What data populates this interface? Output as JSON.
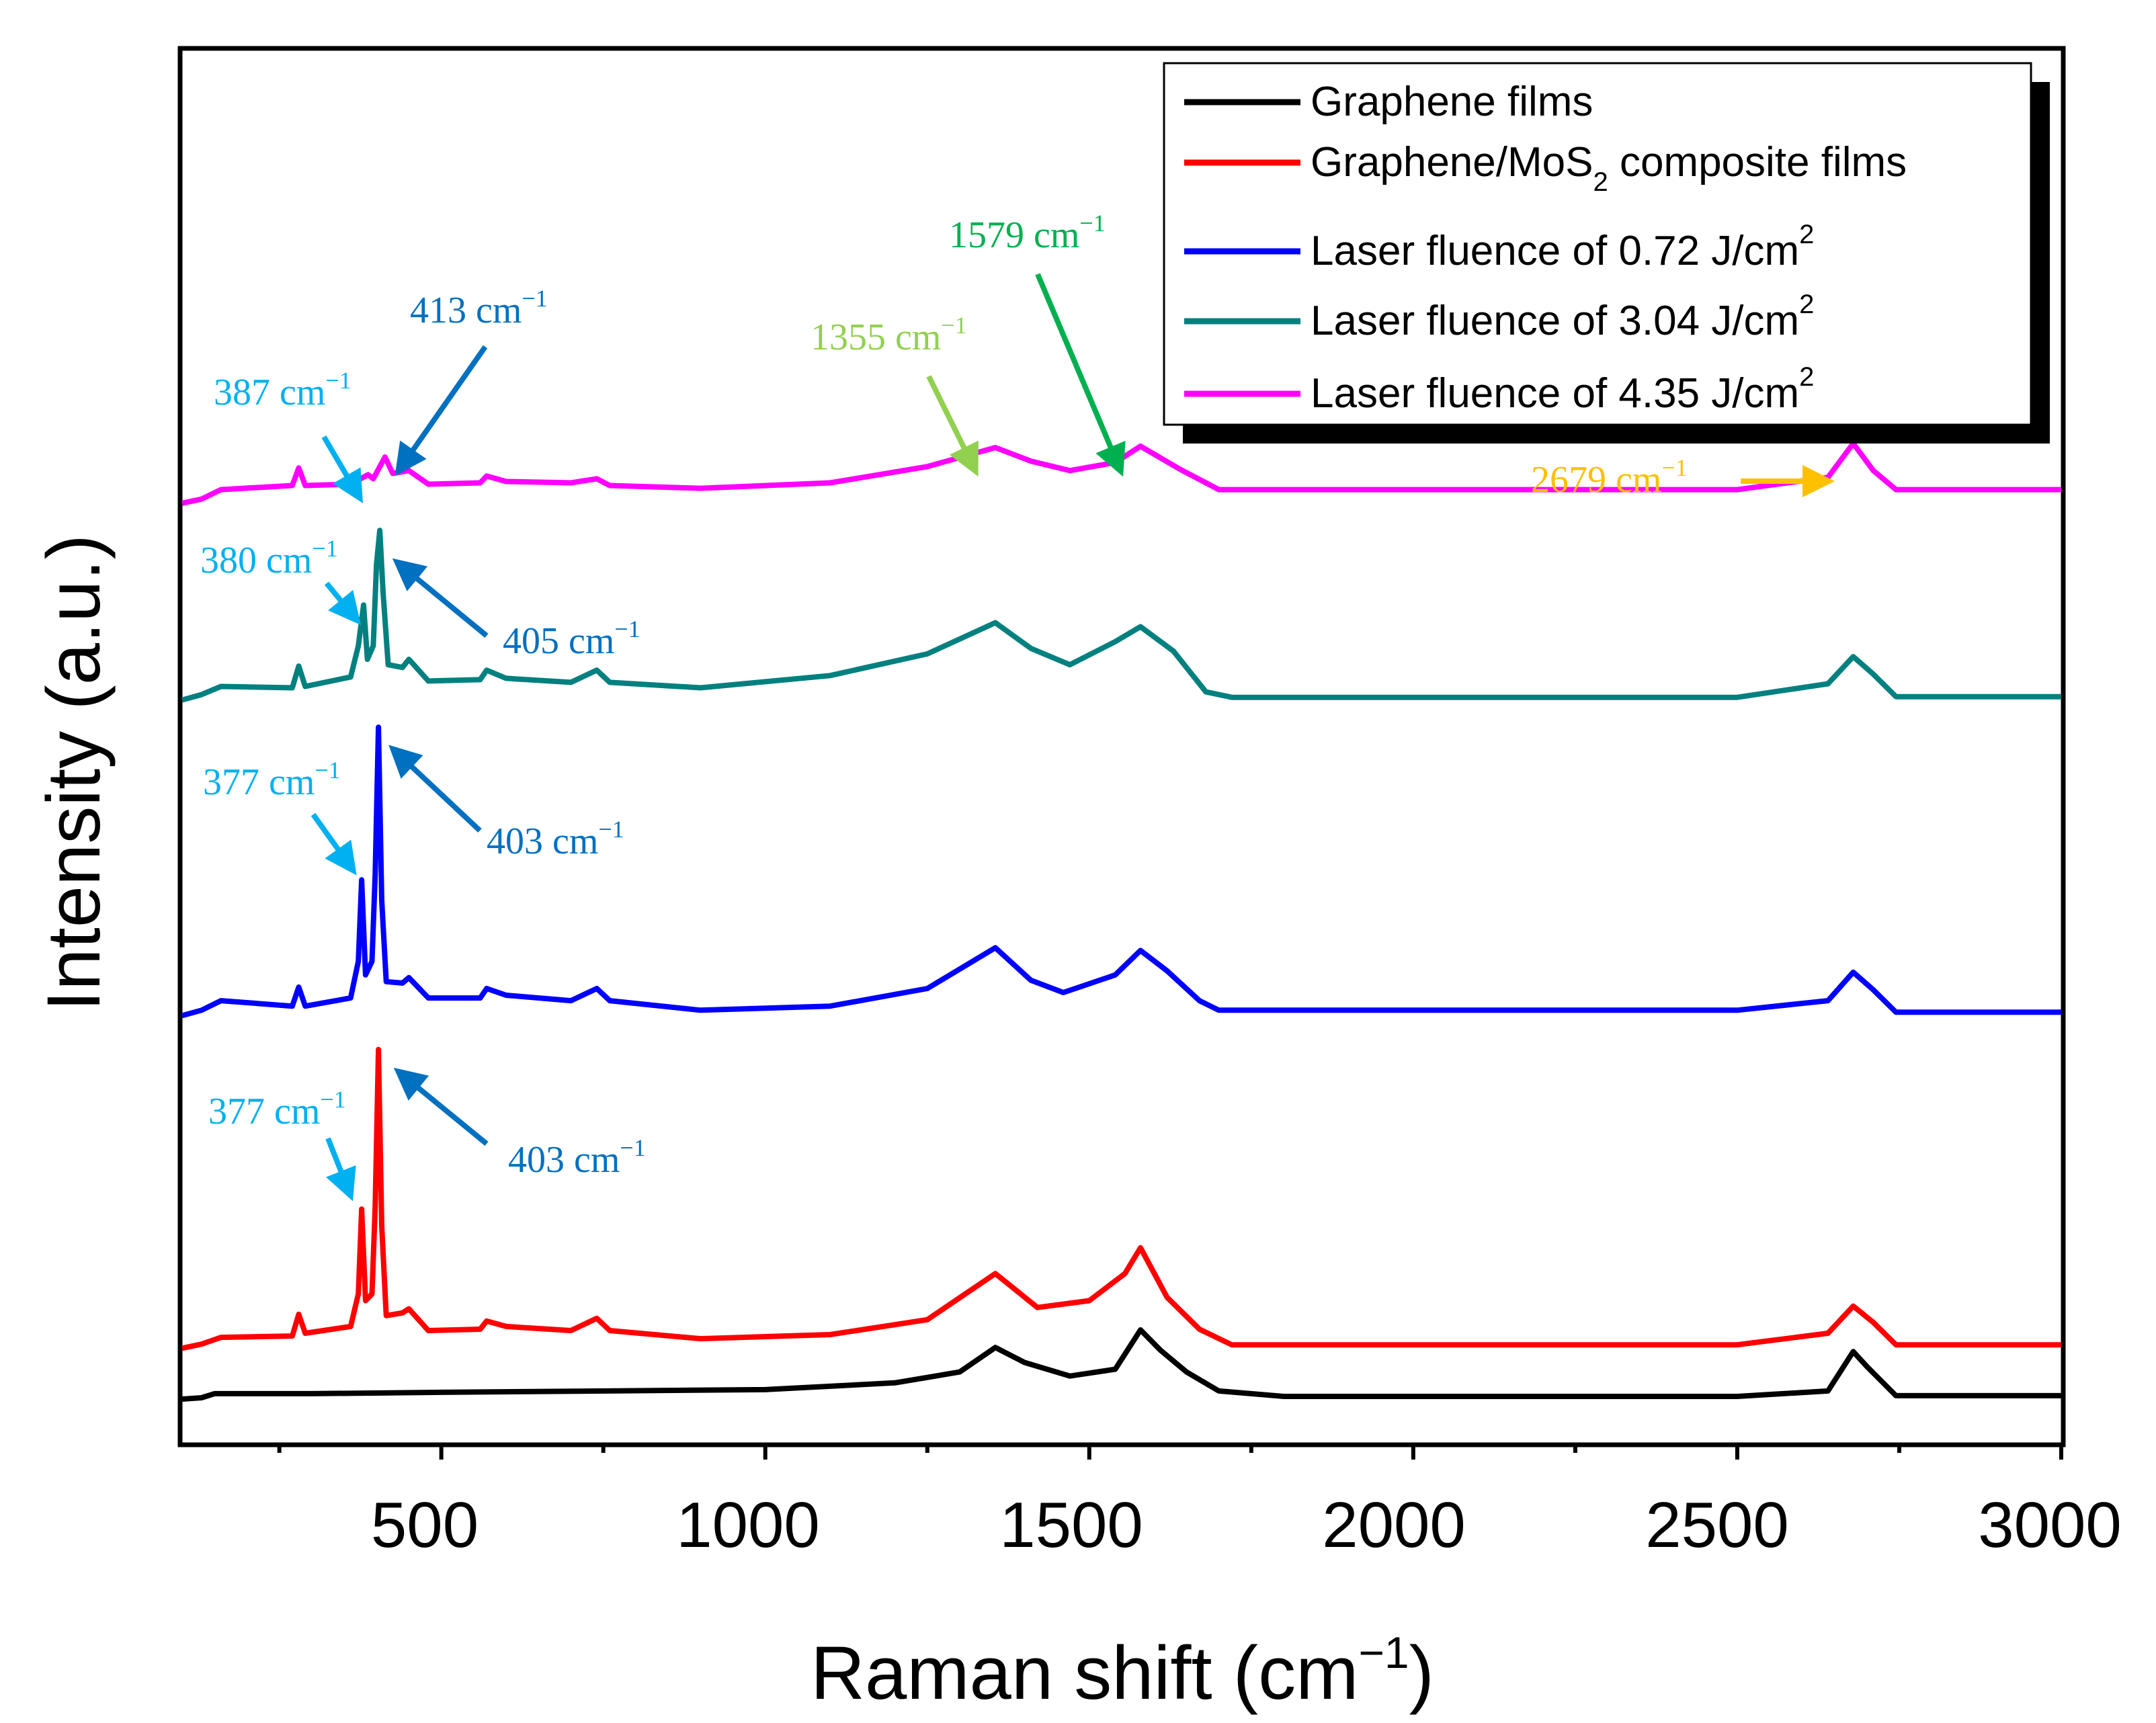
{
  "chart_data": {
    "type": "line",
    "title": "",
    "xlabel": "Raman shift (cm",
    "xlabel_sup": "−1",
    "xlabel_close": ")",
    "ylabel": "Intensity (a.u.)",
    "xlim": [
      100,
      3000
    ],
    "xticks": [
      500,
      1000,
      1500,
      2000,
      2500,
      3000
    ],
    "xtick_labels": [
      "500",
      "1000",
      "1500",
      "2000",
      "2500",
      "3000"
    ],
    "yticks_shown": false,
    "legend_position": "top-right",
    "series": [
      {
        "key": "graphene",
        "name": "Graphene films",
        "color": "#000000",
        "offset": 0,
        "points": [
          [
            100,
            0
          ],
          [
            130,
            2
          ],
          [
            150,
            8
          ],
          [
            300,
            8
          ],
          [
            500,
            10
          ],
          [
            1000,
            14
          ],
          [
            1200,
            24
          ],
          [
            1300,
            40
          ],
          [
            1355,
            76
          ],
          [
            1400,
            54
          ],
          [
            1470,
            34
          ],
          [
            1540,
            44
          ],
          [
            1579,
            102
          ],
          [
            1610,
            72
          ],
          [
            1650,
            40
          ],
          [
            1700,
            12
          ],
          [
            1800,
            4
          ],
          [
            2500,
            4
          ],
          [
            2640,
            12
          ],
          [
            2679,
            70
          ],
          [
            2700,
            48
          ],
          [
            2745,
            5
          ],
          [
            3000,
            5
          ]
        ]
      },
      {
        "key": "composite",
        "name": "Graphene/MoS",
        "name_sub": "2",
        "name_rest": " composite films",
        "color": "#ff0000",
        "offset": 75,
        "points": [
          [
            100,
            0
          ],
          [
            130,
            6
          ],
          [
            160,
            16
          ],
          [
            270,
            18
          ],
          [
            280,
            50
          ],
          [
            290,
            22
          ],
          [
            360,
            32
          ],
          [
            372,
            80
          ],
          [
            377,
            205
          ],
          [
            383,
            70
          ],
          [
            393,
            80
          ],
          [
            398,
            210
          ],
          [
            403,
            440
          ],
          [
            408,
            180
          ],
          [
            415,
            48
          ],
          [
            440,
            52
          ],
          [
            450,
            58
          ],
          [
            480,
            26
          ],
          [
            560,
            28
          ],
          [
            570,
            40
          ],
          [
            600,
            32
          ],
          [
            700,
            26
          ],
          [
            740,
            44
          ],
          [
            760,
            26
          ],
          [
            900,
            14
          ],
          [
            1100,
            20
          ],
          [
            1250,
            42
          ],
          [
            1355,
            110
          ],
          [
            1420,
            60
          ],
          [
            1500,
            70
          ],
          [
            1555,
            110
          ],
          [
            1579,
            148
          ],
          [
            1620,
            75
          ],
          [
            1670,
            28
          ],
          [
            1720,
            5
          ],
          [
            2500,
            5
          ],
          [
            2640,
            22
          ],
          [
            2679,
            62
          ],
          [
            2710,
            38
          ],
          [
            2745,
            5
          ],
          [
            3000,
            5
          ]
        ]
      },
      {
        "key": "f072",
        "name": "Laser fluence of 0.72 J/cm",
        "name_sup": "2",
        "color": "#0000ff",
        "offset": 565,
        "points": [
          [
            100,
            0
          ],
          [
            130,
            8
          ],
          [
            160,
            22
          ],
          [
            270,
            14
          ],
          [
            280,
            42
          ],
          [
            290,
            14
          ],
          [
            360,
            26
          ],
          [
            372,
            80
          ],
          [
            377,
            200
          ],
          [
            383,
            60
          ],
          [
            393,
            80
          ],
          [
            398,
            210
          ],
          [
            403,
            425
          ],
          [
            408,
            170
          ],
          [
            415,
            50
          ],
          [
            440,
            48
          ],
          [
            450,
            56
          ],
          [
            480,
            26
          ],
          [
            560,
            26
          ],
          [
            570,
            40
          ],
          [
            600,
            30
          ],
          [
            700,
            22
          ],
          [
            740,
            40
          ],
          [
            760,
            22
          ],
          [
            900,
            8
          ],
          [
            1100,
            14
          ],
          [
            1250,
            40
          ],
          [
            1355,
            100
          ],
          [
            1410,
            52
          ],
          [
            1460,
            34
          ],
          [
            1540,
            60
          ],
          [
            1579,
            96
          ],
          [
            1620,
            66
          ],
          [
            1670,
            22
          ],
          [
            1700,
            8
          ],
          [
            2500,
            8
          ],
          [
            2640,
            22
          ],
          [
            2679,
            64
          ],
          [
            2710,
            38
          ],
          [
            2745,
            5
          ],
          [
            3000,
            5
          ]
        ]
      },
      {
        "key": "f304",
        "name": "Laser fluence of 3.04 J/cm",
        "name_sup": "2",
        "color": "#00807f",
        "offset": 1030,
        "points": [
          [
            100,
            0
          ],
          [
            130,
            8
          ],
          [
            160,
            20
          ],
          [
            270,
            18
          ],
          [
            280,
            50
          ],
          [
            290,
            20
          ],
          [
            360,
            34
          ],
          [
            372,
            80
          ],
          [
            380,
            140
          ],
          [
            386,
            60
          ],
          [
            395,
            80
          ],
          [
            400,
            200
          ],
          [
            405,
            250
          ],
          [
            410,
            160
          ],
          [
            418,
            52
          ],
          [
            440,
            48
          ],
          [
            450,
            60
          ],
          [
            480,
            28
          ],
          [
            560,
            30
          ],
          [
            570,
            44
          ],
          [
            600,
            32
          ],
          [
            700,
            26
          ],
          [
            740,
            44
          ],
          [
            760,
            26
          ],
          [
            900,
            18
          ],
          [
            1100,
            36
          ],
          [
            1250,
            68
          ],
          [
            1355,
            114
          ],
          [
            1410,
            76
          ],
          [
            1470,
            52
          ],
          [
            1540,
            86
          ],
          [
            1579,
            108
          ],
          [
            1630,
            72
          ],
          [
            1680,
            12
          ],
          [
            1720,
            4
          ],
          [
            2500,
            4
          ],
          [
            2640,
            24
          ],
          [
            2679,
            64
          ],
          [
            2710,
            38
          ],
          [
            2745,
            5
          ],
          [
            3000,
            5
          ]
        ]
      },
      {
        "key": "f435",
        "name": "Laser fluence of 4.35 J/cm",
        "name_sup": "2",
        "color": "#ff00ff",
        "offset": 1320,
        "points": [
          [
            100,
            0
          ],
          [
            130,
            6
          ],
          [
            160,
            20
          ],
          [
            270,
            26
          ],
          [
            280,
            52
          ],
          [
            290,
            26
          ],
          [
            360,
            28
          ],
          [
            387,
            42
          ],
          [
            395,
            36
          ],
          [
            413,
            68
          ],
          [
            425,
            44
          ],
          [
            450,
            48
          ],
          [
            480,
            28
          ],
          [
            560,
            30
          ],
          [
            570,
            40
          ],
          [
            600,
            32
          ],
          [
            700,
            30
          ],
          [
            740,
            36
          ],
          [
            760,
            26
          ],
          [
            900,
            22
          ],
          [
            1100,
            30
          ],
          [
            1250,
            54
          ],
          [
            1355,
            82
          ],
          [
            1410,
            62
          ],
          [
            1470,
            48
          ],
          [
            1540,
            60
          ],
          [
            1579,
            84
          ],
          [
            1640,
            50
          ],
          [
            1700,
            20
          ],
          [
            2500,
            20
          ],
          [
            2640,
            38
          ],
          [
            2679,
            88
          ],
          [
            2710,
            48
          ],
          [
            2745,
            20
          ],
          [
            3000,
            20
          ]
        ]
      }
    ],
    "annotations": [
      {
        "text": "413 cm",
        "sup": "−1",
        "color": "#0070c0"
      },
      {
        "text": "387 cm",
        "sup": "−1",
        "color": "#00b0f0"
      },
      {
        "text": "1355 cm",
        "sup": "−1",
        "color": "#92d050"
      },
      {
        "text": "1579 cm",
        "sup": "−1",
        "color": "#00b050"
      },
      {
        "text": "2679 cm",
        "sup": "−1",
        "color": "#ffc000"
      },
      {
        "text": "380 cm",
        "sup": "−1",
        "color": "#00b0f0"
      },
      {
        "text": "405 cm",
        "sup": "−1",
        "color": "#0070c0"
      },
      {
        "text": "377 cm",
        "sup": "−1",
        "color": "#00b0f0"
      },
      {
        "text": "403 cm",
        "sup": "−1",
        "color": "#0070c0"
      },
      {
        "text": "377 cm",
        "sup": "−1",
        "color": "#00b0f0"
      },
      {
        "text": "403 cm",
        "sup": "−1",
        "color": "#0070c0"
      }
    ]
  }
}
